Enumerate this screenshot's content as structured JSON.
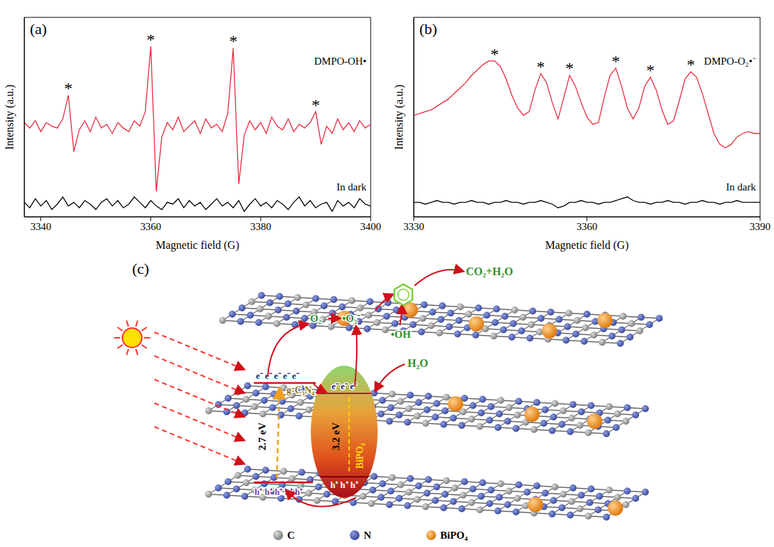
{
  "chart_data": [
    {
      "type": "line",
      "panel": "(a)",
      "x_label": "Magnetic field (G)",
      "y_label": "Intensity (a.u.)",
      "xlim": [
        3337,
        3400
      ],
      "xticks": [
        3340,
        3360,
        3380,
        3400
      ],
      "ylim": [
        0,
        110
      ],
      "tick_labels": "x",
      "x": [
        3337,
        3338,
        3339,
        3340,
        3341,
        3342,
        3343,
        3344,
        3345,
        3346,
        3347,
        3348,
        3349,
        3350,
        3351,
        3352,
        3353,
        3354,
        3355,
        3356,
        3357,
        3358,
        3359,
        3360,
        3361,
        3362,
        3363,
        3364,
        3365,
        3366,
        3367,
        3368,
        3369,
        3370,
        3371,
        3372,
        3373,
        3374,
        3375,
        3376,
        3377,
        3378,
        3379,
        3380,
        3381,
        3382,
        3383,
        3384,
        3385,
        3386,
        3387,
        3388,
        3389,
        3390,
        3391,
        3392,
        3393,
        3394,
        3395,
        3396,
        3397,
        3398,
        3399,
        3400
      ],
      "series": [
        {
          "name": "DMPO-OH•",
          "color": "#e8283c",
          "values": [
            52,
            49,
            53,
            47,
            52,
            50,
            49,
            54,
            67,
            36,
            48,
            53,
            47,
            55,
            49,
            51,
            46,
            52,
            49,
            47,
            53,
            50,
            58,
            94,
            14,
            44,
            52,
            48,
            55,
            47,
            50,
            53,
            46,
            54,
            49,
            51,
            47,
            57,
            93,
            18,
            45,
            53,
            48,
            52,
            46,
            55,
            50,
            48,
            54,
            47,
            51,
            49,
            52,
            58,
            40,
            50,
            46,
            54,
            48,
            52,
            47,
            53,
            49,
            51
          ]
        },
        {
          "name": "In dark",
          "color": "#000000",
          "values": [
            8,
            5,
            10,
            6,
            9,
            4,
            7,
            11,
            6,
            8,
            5,
            9,
            7,
            4,
            8,
            10,
            6,
            9,
            5,
            7,
            11,
            8,
            5,
            9,
            6,
            4,
            8,
            7,
            10,
            5,
            9,
            6,
            8,
            4,
            7,
            10,
            6,
            8,
            5,
            9,
            3,
            7,
            10,
            6,
            8,
            5,
            9,
            7,
            4,
            8,
            11,
            6,
            9,
            5,
            7,
            8,
            3,
            9,
            6,
            8,
            5,
            10,
            7,
            6
          ]
        }
      ],
      "peak_marks": {
        "text": "*",
        "x": [
          3345,
          3360,
          3375,
          3390
        ]
      }
    },
    {
      "type": "line",
      "panel": "(b)",
      "x_label": "Magnetic field (G)",
      "y_label": "Intensity (a.u.)",
      "xlim": [
        3330,
        3390
      ],
      "xticks": [
        3330,
        3360,
        3390
      ],
      "ylim": [
        0,
        110
      ],
      "tick_labels": "x",
      "x": [
        3330,
        3331,
        3332,
        3333,
        3334,
        3335,
        3336,
        3337,
        3338,
        3339,
        3340,
        3341,
        3342,
        3343,
        3344,
        3345,
        3346,
        3347,
        3348,
        3349,
        3350,
        3351,
        3352,
        3353,
        3354,
        3355,
        3356,
        3357,
        3358,
        3359,
        3360,
        3361,
        3362,
        3363,
        3364,
        3365,
        3366,
        3367,
        3368,
        3369,
        3370,
        3371,
        3372,
        3373,
        3374,
        3375,
        3376,
        3377,
        3378,
        3379,
        3380,
        3381,
        3382,
        3383,
        3384,
        3385,
        3386,
        3387,
        3388,
        3389,
        3390
      ],
      "series": [
        {
          "name": "DMPO-O₂•⁻",
          "color": "#e8283c",
          "values": [
            56,
            57,
            58,
            59,
            61,
            63,
            65,
            68,
            71,
            74,
            78,
            81,
            84,
            86,
            86,
            83,
            76,
            67,
            60,
            56,
            58,
            70,
            79,
            74,
            63,
            54,
            66,
            78,
            72,
            63,
            55,
            51,
            52,
            66,
            78,
            82,
            72,
            60,
            54,
            60,
            72,
            77,
            70,
            59,
            51,
            53,
            64,
            76,
            80,
            77,
            68,
            57,
            46,
            40,
            38,
            40,
            44,
            46,
            47,
            46,
            46
          ]
        },
        {
          "name": "In dark",
          "color": "#000000",
          "values": [
            8,
            8,
            7,
            8,
            9,
            8,
            8,
            7,
            8,
            8,
            9,
            8,
            8,
            7,
            8,
            8,
            9,
            8,
            8,
            7,
            8,
            8,
            9,
            8,
            7,
            5,
            6,
            8,
            8,
            9,
            8,
            8,
            7,
            8,
            8,
            9,
            10,
            11,
            9,
            8,
            8,
            7,
            8,
            8,
            9,
            8,
            8,
            7,
            8,
            8,
            9,
            8,
            8,
            7,
            8,
            8,
            9,
            8,
            8,
            8,
            8
          ]
        }
      ],
      "peak_marks": {
        "text": "*",
        "x": [
          3344,
          3352,
          3357,
          3365,
          3371,
          3378
        ]
      }
    }
  ],
  "diagram": {
    "label": "(c)",
    "g_c3n4": {
      "name": "g-C₃N₄",
      "band_gap": "2.7 eV",
      "electrons": "e⁻ e⁻ e⁻ e⁻ e⁻",
      "holes": "h⁺ h⁺ h⁺ h⁺ h⁺"
    },
    "bipo4": {
      "name": "BiPO₄",
      "band_gap": "3.2 eV",
      "electrons": "e⁻ e⁻ e⁻",
      "holes": "h⁺ h⁺ h⁺"
    },
    "species": {
      "o2": "O₂",
      "superoxide": "•O₂⁻",
      "hydroxyl": "•OH",
      "water": "H₂O",
      "products": "CO₂+H₂O"
    },
    "legend": [
      {
        "label": "C",
        "color": "#7d7d7d"
      },
      {
        "label": "N",
        "color": "#3b4a9c"
      },
      {
        "label": "BiPO₄",
        "color": "#e07b10"
      }
    ]
  }
}
